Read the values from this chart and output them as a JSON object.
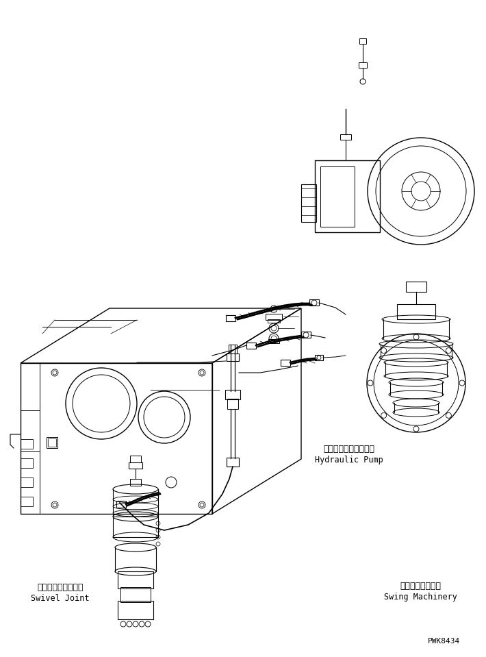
{
  "bg_color": "#ffffff",
  "line_color": "#000000",
  "font_color": "#000000",
  "labels": {
    "hydraulic_pump_jp": "ハイドロリックポンプ",
    "hydraulic_pump_en": "Hydraulic Pump",
    "swing_machinery_jp": "スイングマシナリ",
    "swing_machinery_en": "Swing Machinery",
    "swivel_joint_jp": "スイベルジョイント",
    "swivel_joint_en": "Swivel Joint",
    "part_number": "PWK8434"
  }
}
